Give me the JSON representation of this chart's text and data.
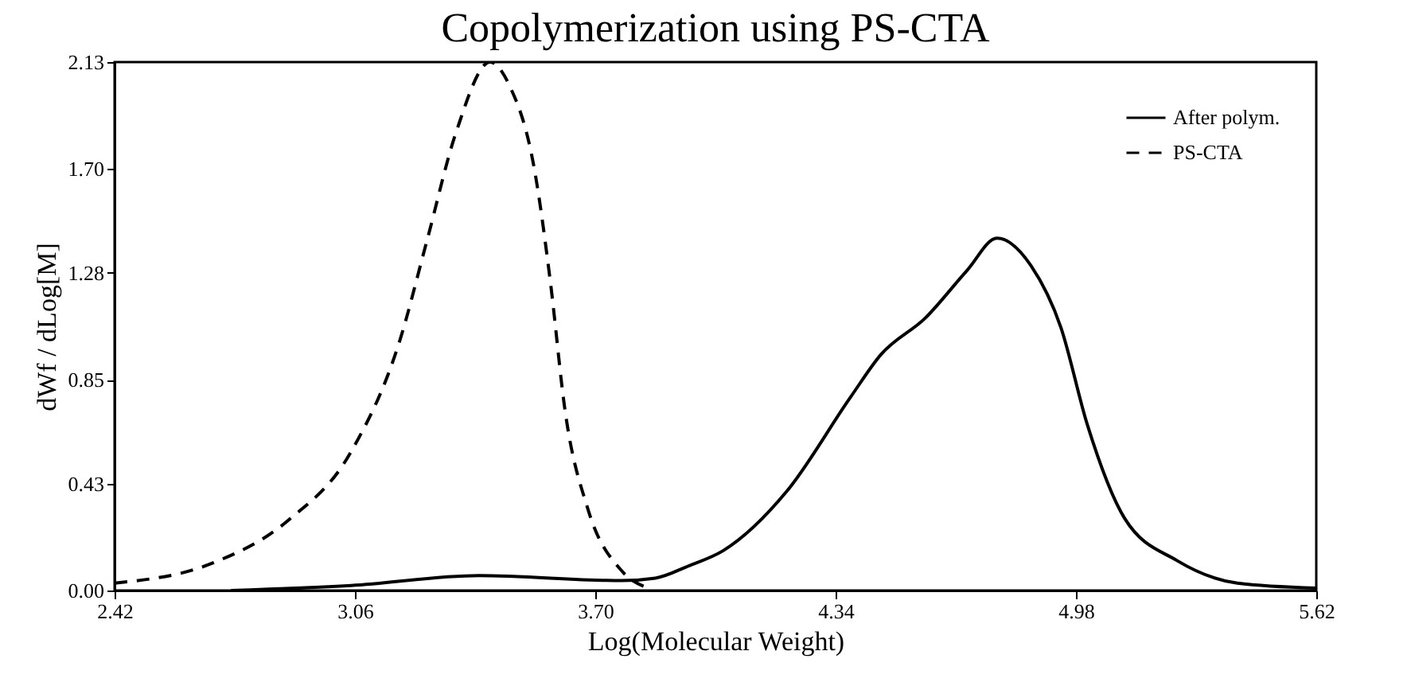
{
  "chart_data": {
    "type": "line",
    "title": "Copolymerization using PS-CTA",
    "xlabel": "Log(Molecular Weight)",
    "ylabel": "dWf / dLog[M]",
    "xlim": [
      2.42,
      5.62
    ],
    "xticks": [
      2.42,
      3.06,
      {
        "value": 3.7,
        "label": "3.70"
      },
      4.34,
      4.98,
      5.62
    ],
    "ylim": [
      0,
      2.13
    ],
    "yticks": [
      {
        "value": 0,
        "label": "0.00"
      },
      0.43,
      0.85,
      1.28,
      {
        "value": 1.7,
        "label": "1.70"
      },
      2.13
    ],
    "legend": "top right",
    "series": [
      {
        "name": "After polym.",
        "color": "#000000",
        "line_style": "solid",
        "x": [
          2.73,
          3.05,
          3.39,
          3.77,
          3.86,
          3.95,
          4.04,
          4.21,
          4.38,
          4.46,
          4.58,
          4.69,
          4.77,
          4.86,
          4.94,
          5.01,
          5.11,
          5.25,
          5.41,
          5.62
        ],
        "values": [
          0,
          0.02,
          0.06,
          0.04,
          0.05,
          0.1,
          0.16,
          0.4,
          0.78,
          0.95,
          1.1,
          1.29,
          1.42,
          1.31,
          1.06,
          0.67,
          0.29,
          0.12,
          0.03,
          0.01
        ]
      },
      {
        "name": "PS-CTA",
        "color": "#000000",
        "line_style": "dashed",
        "x": [
          2.42,
          2.68,
          2.88,
          3.05,
          3.18,
          3.25,
          3.33,
          3.42,
          3.47,
          3.54,
          3.58,
          3.62,
          3.68,
          3.77,
          3.84
        ],
        "values": [
          0.03,
          0.11,
          0.28,
          0.56,
          1.01,
          1.4,
          1.85,
          2.13,
          2.04,
          1.68,
          1.25,
          0.72,
          0.33,
          0.08,
          0.01
        ]
      }
    ]
  }
}
